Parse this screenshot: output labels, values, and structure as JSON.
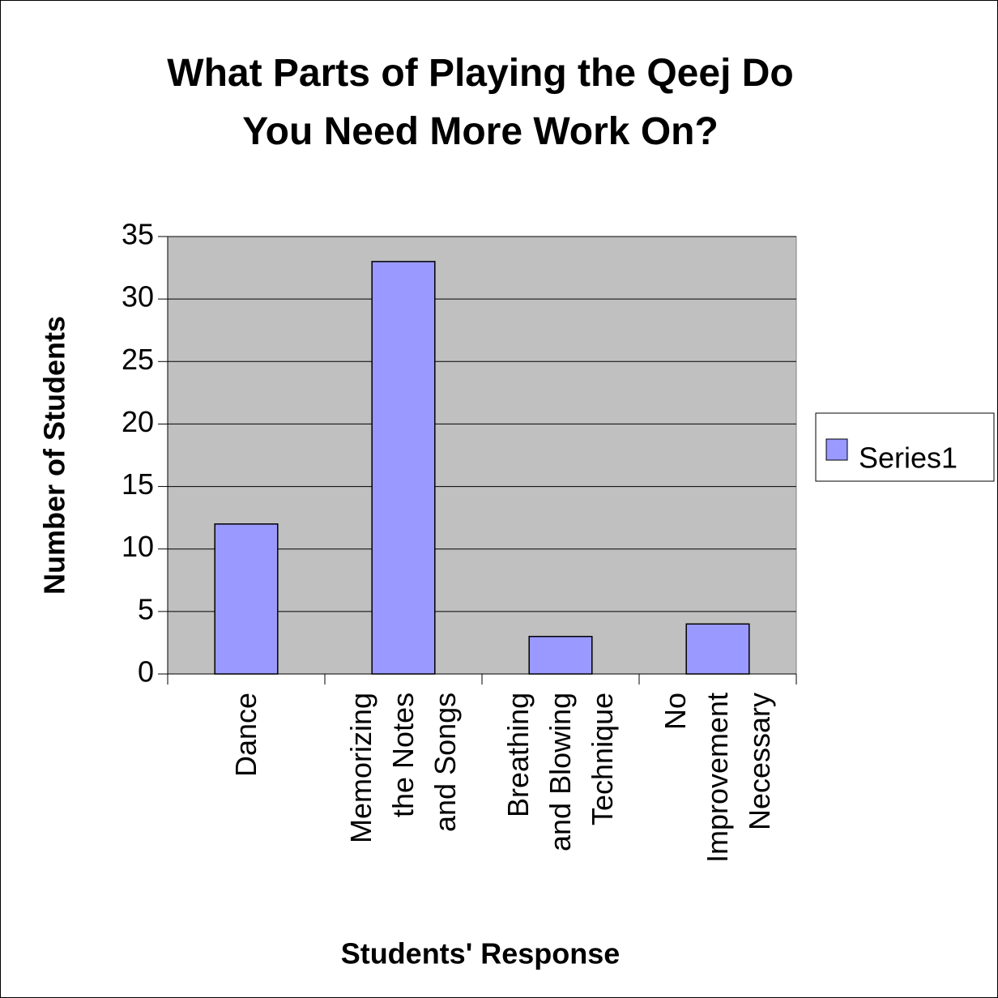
{
  "chart_data": {
    "type": "bar",
    "title": "What Parts of Playing the Qeej Do\nYou Need More Work On?",
    "x_label": "Students' Response",
    "y_label": "Number of Students",
    "categories": [
      "Dance",
      "Memorizing\nthe Notes\nand Songs",
      "Breathing\nand Blowing\nTechnique",
      "No\nImprovement\nNecessary"
    ],
    "series": [
      {
        "name": "Series1",
        "color": "#9999ff",
        "values": [
          12,
          33,
          3,
          4
        ]
      }
    ],
    "ylim": [
      0,
      35
    ],
    "yticks": [
      0,
      5,
      10,
      15,
      20,
      25,
      30,
      35
    ],
    "grid": true,
    "legend": "right"
  }
}
